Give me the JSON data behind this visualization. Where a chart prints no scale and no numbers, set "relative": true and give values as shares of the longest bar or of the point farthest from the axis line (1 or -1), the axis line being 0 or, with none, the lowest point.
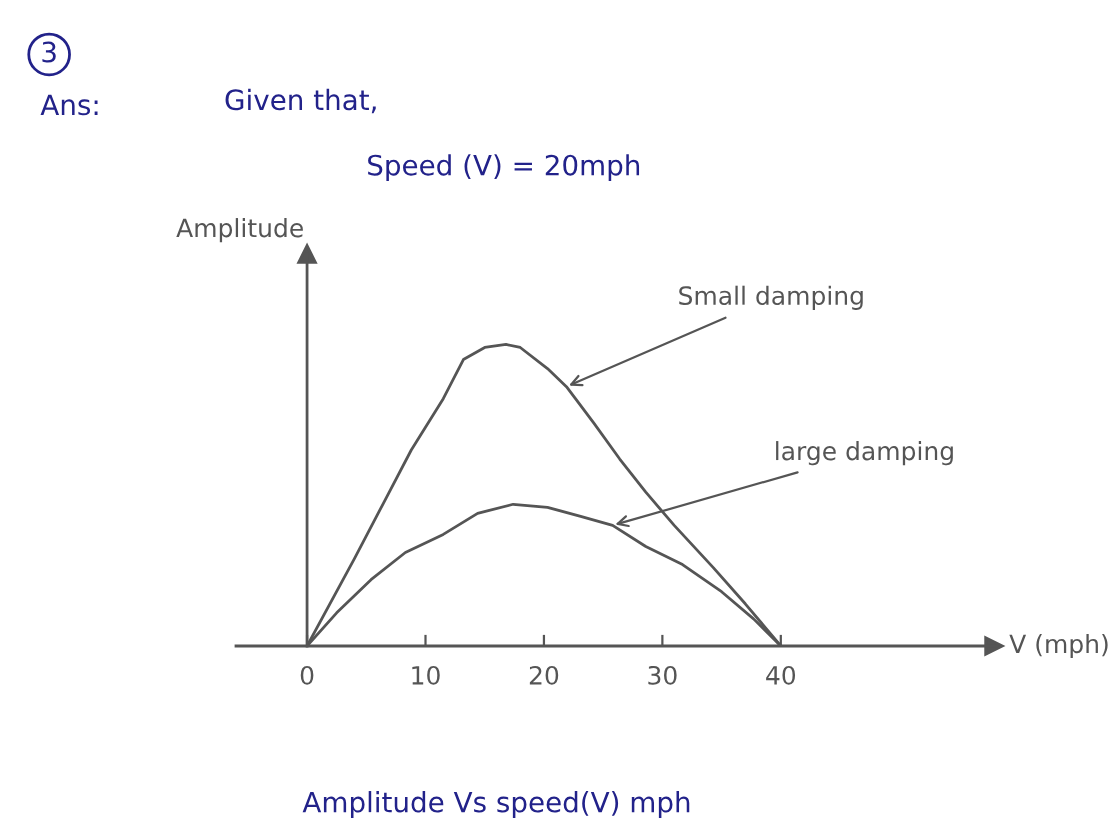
{
  "chart_data": {
    "type": "line",
    "relative": true,
    "title": "Amplitude Vs speed(V) mph",
    "xlabel": "V (mph)",
    "ylabel": "Amplitude",
    "annotations": [
      "3",
      "Ans:",
      "Given that,",
      "Speed (V) = 20mph"
    ],
    "xlim": [
      -6,
      58
    ],
    "xticks": [
      0,
      10,
      20,
      30,
      40
    ],
    "legend": false,
    "marker": "none",
    "line_style": "solid",
    "series": [
      {
        "name": "Small damping",
        "color": "#555555",
        "x": [
          0,
          4.0,
          6.4,
          8.8,
          11.5,
          13.2,
          15.0,
          16.8,
          18.0,
          20.3,
          21.9,
          24.2,
          26.4,
          28.6,
          31.0,
          34.3,
          37.0,
          40
        ],
        "values": [
          0,
          0.29,
          0.47,
          0.65,
          0.82,
          0.95,
          0.99,
          1.0,
          0.99,
          0.92,
          0.86,
          0.74,
          0.62,
          0.51,
          0.4,
          0.26,
          0.14,
          0
        ]
      },
      {
        "name": "large damping",
        "color": "#555555",
        "x": [
          0,
          2.5,
          5.4,
          8.3,
          11.5,
          14.4,
          17.4,
          20.3,
          23.1,
          25.8,
          28.6,
          31.7,
          35.0,
          37.7,
          40
        ],
        "values": [
          0,
          0.11,
          0.22,
          0.31,
          0.37,
          0.44,
          0.47,
          0.46,
          0.43,
          0.4,
          0.33,
          0.27,
          0.18,
          0.09,
          0
        ]
      }
    ]
  }
}
